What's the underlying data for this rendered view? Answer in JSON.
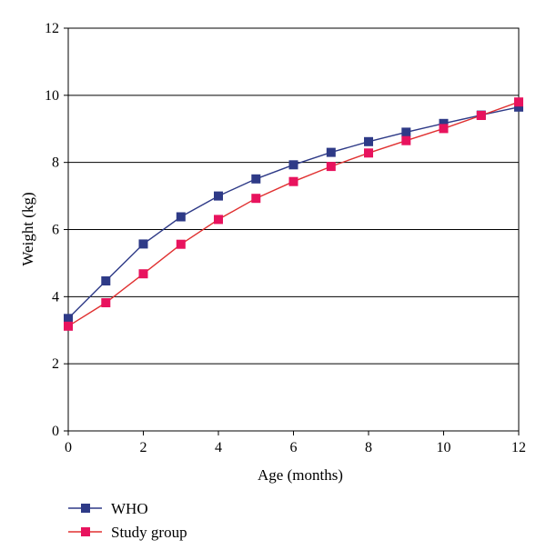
{
  "chart_data": {
    "type": "line",
    "xlabel": "Age (months)",
    "ylabel": "Weight (kg)",
    "xlim": [
      0,
      12
    ],
    "ylim": [
      0,
      12
    ],
    "x_ticks": [
      "0",
      "2",
      "4",
      "6",
      "8",
      "10",
      "12"
    ],
    "y_ticks": [
      "0",
      "2",
      "4",
      "6",
      "8",
      "10",
      "12"
    ],
    "grid": "horizontal",
    "legend_position": "bottom-left",
    "x": [
      0,
      1,
      2,
      3,
      4,
      5,
      6,
      7,
      8,
      9,
      10,
      11,
      12
    ],
    "series": [
      {
        "name": "WHO",
        "color": "#2E3A87",
        "marker": "square",
        "values": [
          3.35,
          4.47,
          5.57,
          6.38,
          7.0,
          7.51,
          7.93,
          8.3,
          8.62,
          8.9,
          9.16,
          9.41,
          9.65
        ]
      },
      {
        "name": "Study group",
        "color": "#E8135E",
        "line_color": "#E03030",
        "marker": "square",
        "values": [
          3.12,
          3.82,
          4.68,
          5.56,
          6.3,
          6.93,
          7.43,
          7.88,
          8.28,
          8.65,
          9.01,
          9.4,
          9.8
        ]
      }
    ]
  }
}
